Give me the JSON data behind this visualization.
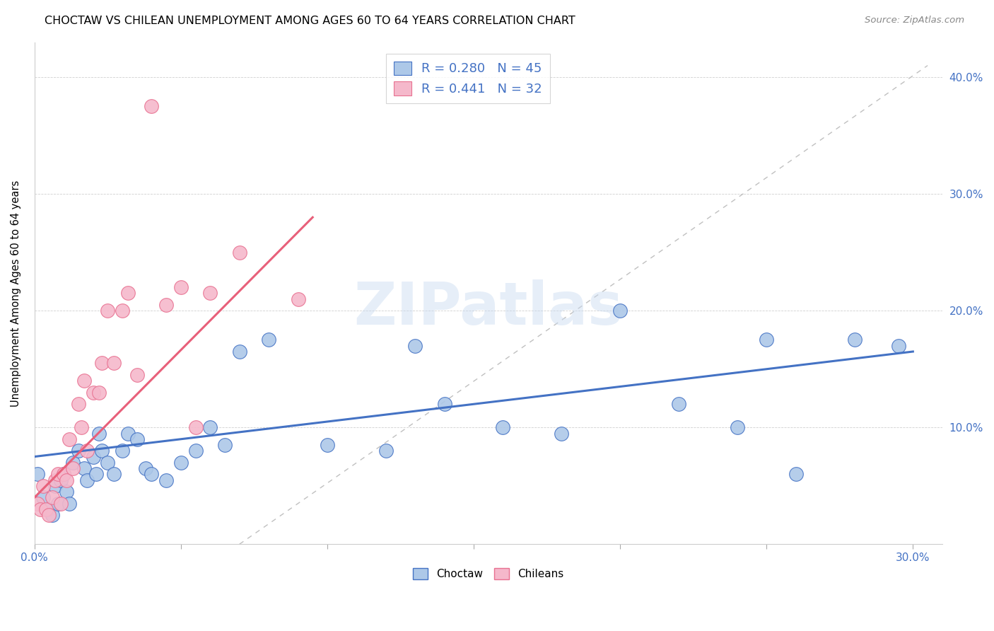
{
  "title": "CHOCTAW VS CHILEAN UNEMPLOYMENT AMONG AGES 60 TO 64 YEARS CORRELATION CHART",
  "source": "Source: ZipAtlas.com",
  "ylabel": "Unemployment Among Ages 60 to 64 years",
  "xlim": [
    0.0,
    0.31
  ],
  "ylim": [
    0.0,
    0.43
  ],
  "xticks": [
    0.0,
    0.05,
    0.1,
    0.15,
    0.2,
    0.25,
    0.3
  ],
  "yticks": [
    0.0,
    0.1,
    0.2,
    0.3,
    0.4
  ],
  "xticklabels": [
    "0.0%",
    "",
    "",
    "",
    "",
    "",
    "30.0%"
  ],
  "yticklabels_right": [
    "",
    "10.0%",
    "20.0%",
    "30.0%",
    "40.0%"
  ],
  "choctaw_color": "#adc8e8",
  "chilean_color": "#f5b8cb",
  "choctaw_edge_color": "#4472c4",
  "chilean_edge_color": "#e87090",
  "choctaw_line_color": "#4472c4",
  "chilean_line_color": "#e8607a",
  "diagonal_color": "#c0c0c0",
  "legend_R_choctaw": "0.280",
  "legend_N_choctaw": "45",
  "legend_R_chilean": "0.441",
  "legend_N_chilean": "32",
  "legend_text_color": "#4472c4",
  "watermark": "ZIPatlas",
  "choctaw_x": [
    0.001,
    0.003,
    0.005,
    0.006,
    0.007,
    0.008,
    0.009,
    0.01,
    0.011,
    0.012,
    0.013,
    0.015,
    0.017,
    0.018,
    0.02,
    0.021,
    0.022,
    0.023,
    0.025,
    0.027,
    0.03,
    0.032,
    0.035,
    0.038,
    0.04,
    0.045,
    0.05,
    0.055,
    0.06,
    0.065,
    0.07,
    0.08,
    0.1,
    0.12,
    0.13,
    0.14,
    0.16,
    0.18,
    0.2,
    0.22,
    0.24,
    0.25,
    0.26,
    0.28,
    0.295
  ],
  "choctaw_y": [
    0.06,
    0.04,
    0.03,
    0.025,
    0.05,
    0.035,
    0.055,
    0.06,
    0.045,
    0.035,
    0.07,
    0.08,
    0.065,
    0.055,
    0.075,
    0.06,
    0.095,
    0.08,
    0.07,
    0.06,
    0.08,
    0.095,
    0.09,
    0.065,
    0.06,
    0.055,
    0.07,
    0.08,
    0.1,
    0.085,
    0.165,
    0.175,
    0.085,
    0.08,
    0.17,
    0.12,
    0.1,
    0.095,
    0.2,
    0.12,
    0.1,
    0.175,
    0.06,
    0.175,
    0.17
  ],
  "chilean_x": [
    0.001,
    0.002,
    0.003,
    0.004,
    0.005,
    0.006,
    0.007,
    0.008,
    0.009,
    0.01,
    0.011,
    0.012,
    0.013,
    0.015,
    0.016,
    0.017,
    0.018,
    0.02,
    0.022,
    0.023,
    0.025,
    0.027,
    0.03,
    0.032,
    0.035,
    0.04,
    0.045,
    0.05,
    0.055,
    0.06,
    0.07,
    0.09
  ],
  "chilean_y": [
    0.035,
    0.03,
    0.05,
    0.03,
    0.025,
    0.04,
    0.055,
    0.06,
    0.035,
    0.06,
    0.055,
    0.09,
    0.065,
    0.12,
    0.1,
    0.14,
    0.08,
    0.13,
    0.13,
    0.155,
    0.2,
    0.155,
    0.2,
    0.215,
    0.145,
    0.375,
    0.205,
    0.22,
    0.1,
    0.215,
    0.25,
    0.21
  ],
  "choctaw_line_x_start": 0.0,
  "choctaw_line_x_end": 0.3,
  "chilean_line_x_start": 0.0,
  "chilean_line_x_end": 0.095,
  "diag_slope": 1.333
}
